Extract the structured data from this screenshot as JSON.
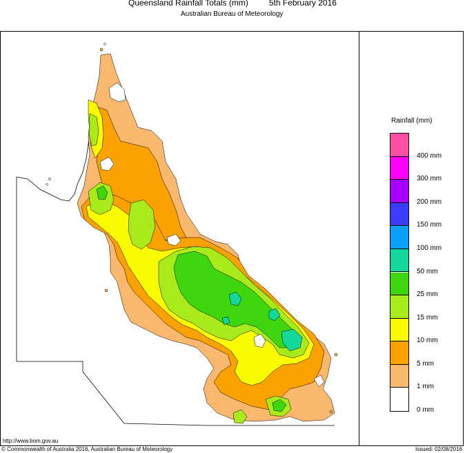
{
  "header": {
    "title": "Queensland Rainfall Totals (mm)",
    "date": "5th February 2016",
    "subtitle": "Australian Bureau of Meteorology"
  },
  "legend": {
    "title": "Rainfall (mm)",
    "bins": [
      {
        "color": "#ff4fa3"
      },
      {
        "color": "#ff00ff"
      },
      {
        "color": "#a800ff"
      },
      {
        "color": "#3c3cff"
      },
      {
        "color": "#0aa0ff"
      },
      {
        "color": "#14d79c"
      },
      {
        "color": "#3ed70e"
      },
      {
        "color": "#a9ea1a"
      },
      {
        "color": "#fbfb00"
      },
      {
        "color": "#fba100"
      },
      {
        "color": "#f9b86e"
      },
      {
        "color": "#ffffff"
      }
    ],
    "labels": [
      "400 mm",
      "300 mm",
      "200 mm",
      "150 mm",
      "100 mm",
      "50 mm",
      "25 mm",
      "15 mm",
      "10 mm",
      "5 mm",
      "1 mm",
      "0 mm"
    ]
  },
  "footer": {
    "url": "http://www.bom.gov.au",
    "copyright": "© Commonwealth of Australia 2016, Australian Bureau of Meteorology",
    "issued": "Issued: 02/08/2016"
  },
  "map": {
    "colors": {
      "c0": "#ffffff",
      "c1": "#f9b86e",
      "c5": "#fba100",
      "c10": "#fbfb00",
      "c15": "#a9ea1a",
      "c25": "#3ed70e",
      "c50": "#14d79c"
    }
  }
}
